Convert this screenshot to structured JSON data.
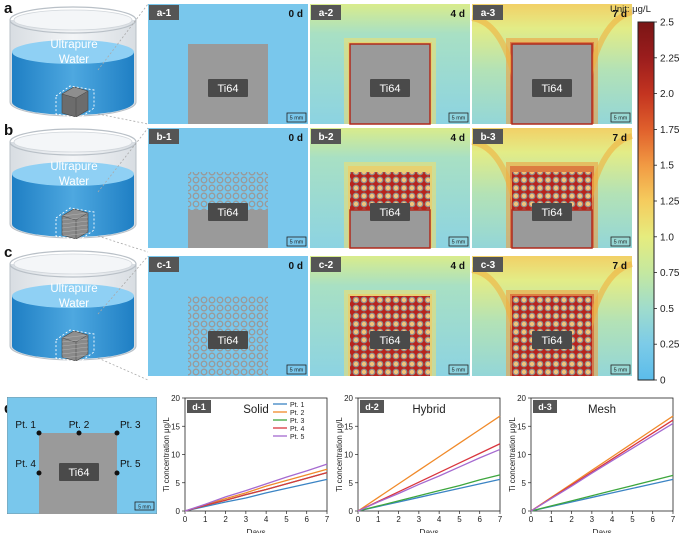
{
  "row_labels": [
    "a",
    "b",
    "c",
    "d"
  ],
  "beaker": {
    "liquid_line1": "Ultrapure",
    "liquid_line2": "Water"
  },
  "sim_rows": [
    {
      "tag_prefix": "a",
      "type": "solid",
      "panels": [
        {
          "tag": "a-1",
          "day": "0 d",
          "stage": 0
        },
        {
          "tag": "a-2",
          "day": "4 d",
          "stage": 1
        },
        {
          "tag": "a-3",
          "day": "7 d",
          "stage": 2
        }
      ]
    },
    {
      "tag_prefix": "b",
      "type": "hybrid",
      "panels": [
        {
          "tag": "b-1",
          "day": "0 d",
          "stage": 0
        },
        {
          "tag": "b-2",
          "day": "4 d",
          "stage": 1
        },
        {
          "tag": "b-3",
          "day": "7 d",
          "stage": 2
        }
      ]
    },
    {
      "tag_prefix": "c",
      "type": "mesh",
      "panels": [
        {
          "tag": "c-1",
          "day": "0 d",
          "stage": 0
        },
        {
          "tag": "c-2",
          "day": "4 d",
          "stage": 1
        },
        {
          "tag": "c-3",
          "day": "7 d",
          "stage": 2
        }
      ]
    }
  ],
  "sample_label": "Ti64",
  "scale_bar": "5 mm",
  "colorbar": {
    "unit_label": "Unit: μg/L",
    "min": 0,
    "max": 2.5,
    "ticks": [
      "0",
      "0.25",
      "0.5",
      "0.75",
      "1.0",
      "1.25",
      "1.5",
      "1.75",
      "2.0",
      "2.25",
      "2.5"
    ],
    "colors": [
      "#5bbcea",
      "#7ccbe8",
      "#9fdccc",
      "#c4e8a0",
      "#e6ec7e",
      "#f5cc5e",
      "#f19a43",
      "#e0602c",
      "#c33420",
      "#9b1d1d",
      "#7a1515"
    ]
  },
  "probe_map": {
    "tag": "d",
    "points": [
      "Pt. 1",
      "Pt. 2",
      "Pt. 3",
      "Pt. 4",
      "Pt. 5"
    ],
    "sample_label": "Ti64",
    "scale_bar": "5 mm"
  },
  "chart_data": [
    {
      "type": "line",
      "tag": "d-1",
      "title": "Solid",
      "xlabel": "Days",
      "ylabel": "Ti concentration μg/L",
      "xlim": [
        0,
        7
      ],
      "ylim": [
        0,
        20
      ],
      "xticks": [
        0,
        1,
        2,
        3,
        4,
        5,
        6,
        7
      ],
      "yticks": [
        0,
        5,
        10,
        15,
        20
      ],
      "x": [
        0,
        1,
        2,
        3,
        4,
        5,
        6,
        7
      ],
      "series": [
        {
          "name": "Pt. 1",
          "color": "#3b84c4",
          "values": [
            0,
            0.8,
            1.6,
            2.3,
            3.2,
            4.0,
            4.8,
            5.6
          ]
        },
        {
          "name": "Pt. 2",
          "color": "#f08a2a",
          "values": [
            0,
            1.1,
            2.2,
            3.2,
            4.4,
            5.4,
            6.4,
            7.4
          ]
        },
        {
          "name": "Pt. 3",
          "color": "#3da63d",
          "values": [
            0,
            1.0,
            1.9,
            2.9,
            3.8,
            4.8,
            5.8,
            6.8
          ]
        },
        {
          "name": "Pt. 4",
          "color": "#d9363e",
          "values": [
            0,
            1.0,
            1.9,
            2.9,
            3.8,
            4.8,
            5.8,
            6.8
          ]
        },
        {
          "name": "Pt. 5",
          "color": "#a56ad0",
          "values": [
            0,
            1.2,
            2.5,
            3.6,
            4.8,
            6.0,
            7.1,
            8.3
          ]
        }
      ],
      "legend": "top-left"
    },
    {
      "type": "line",
      "tag": "d-2",
      "title": "Hybrid",
      "xlabel": "Days",
      "ylabel": "Ti concentration μg/L",
      "xlim": [
        0,
        7
      ],
      "ylim": [
        0,
        20
      ],
      "xticks": [
        0,
        1,
        2,
        3,
        4,
        5,
        6,
        7
      ],
      "yticks": [
        0,
        5,
        10,
        15,
        20
      ],
      "x": [
        0,
        1,
        2,
        3,
        4,
        5,
        6,
        7
      ],
      "series": [
        {
          "name": "Pt. 1",
          "color": "#3b84c4",
          "values": [
            0,
            0.8,
            1.6,
            2.4,
            3.2,
            4.0,
            4.8,
            5.6
          ]
        },
        {
          "name": "Pt. 2",
          "color": "#f08a2a",
          "values": [
            0,
            2.4,
            4.8,
            7.2,
            9.6,
            12.0,
            14.4,
            16.8
          ]
        },
        {
          "name": "Pt. 3",
          "color": "#3da63d",
          "values": [
            0,
            0.9,
            1.8,
            2.7,
            3.6,
            4.5,
            5.5,
            6.4
          ]
        },
        {
          "name": "Pt. 4",
          "color": "#d9363e",
          "values": [
            0,
            1.7,
            3.4,
            5.1,
            6.8,
            8.5,
            10.2,
            11.9
          ]
        },
        {
          "name": "Pt. 5",
          "color": "#a56ad0",
          "values": [
            0,
            1.6,
            3.1,
            4.7,
            6.2,
            7.8,
            9.4,
            10.9
          ]
        }
      ]
    },
    {
      "type": "line",
      "tag": "d-3",
      "title": "Mesh",
      "xlabel": "Days",
      "ylabel": "Ti concentration μg/L",
      "xlim": [
        0,
        7
      ],
      "ylim": [
        0,
        20
      ],
      "xticks": [
        0,
        1,
        2,
        3,
        4,
        5,
        6,
        7
      ],
      "yticks": [
        0,
        5,
        10,
        15,
        20
      ],
      "x": [
        0,
        1,
        2,
        3,
        4,
        5,
        6,
        7
      ],
      "series": [
        {
          "name": "Pt. 1",
          "color": "#3b84c4",
          "values": [
            0,
            0.8,
            1.6,
            2.4,
            3.2,
            4.0,
            4.8,
            5.6
          ]
        },
        {
          "name": "Pt. 2",
          "color": "#f08a2a",
          "values": [
            0,
            2.4,
            4.8,
            7.2,
            9.6,
            12.0,
            14.4,
            16.8
          ]
        },
        {
          "name": "Pt. 3",
          "color": "#3da63d",
          "values": [
            0,
            0.9,
            1.8,
            2.7,
            3.6,
            4.5,
            5.4,
            6.3
          ]
        },
        {
          "name": "Pt. 4",
          "color": "#d9363e",
          "values": [
            0,
            2.3,
            4.6,
            6.9,
            9.2,
            11.5,
            13.8,
            16.1
          ]
        },
        {
          "name": "Pt. 5",
          "color": "#a56ad0",
          "values": [
            0,
            2.2,
            4.4,
            6.7,
            8.9,
            11.1,
            13.3,
            15.5
          ]
        }
      ]
    }
  ]
}
